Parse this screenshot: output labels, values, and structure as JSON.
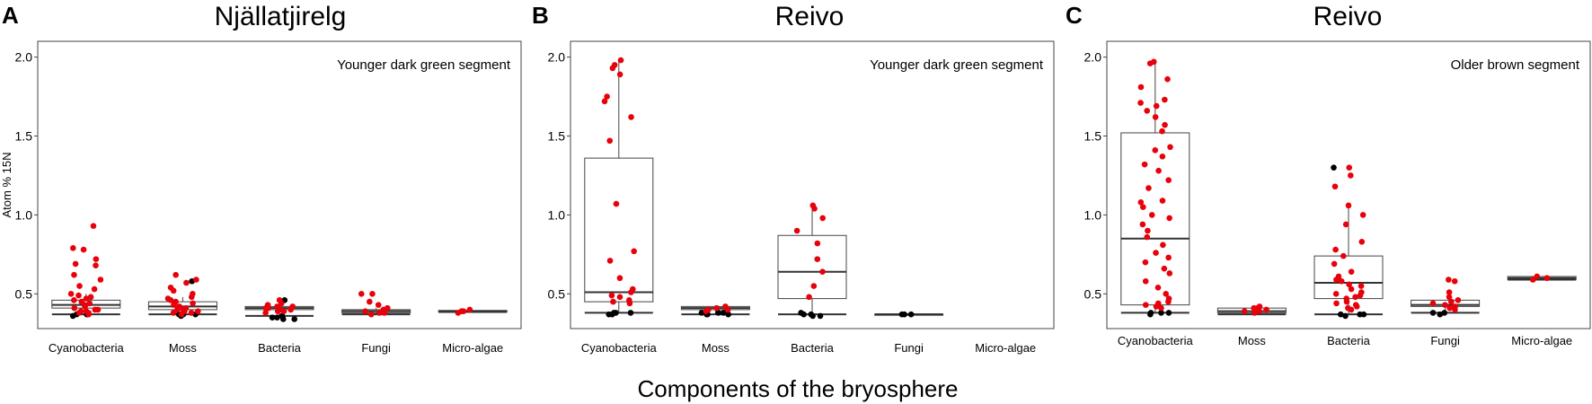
{
  "figure": {
    "xlabel": "Components of the bryosphere"
  },
  "colors": {
    "labelled": "#e8000b",
    "unlabelled": "#000000",
    "box": "#000000"
  },
  "chart_data": [
    {
      "type": "box",
      "panel": "A",
      "title": "Njällatjirelg",
      "annotation": "Younger dark green segment",
      "ylabel": "Atom % 15N",
      "yticks": [
        0.5,
        1.0,
        1.5,
        2.0
      ],
      "ytick_labels": [
        "0.5",
        "1.0",
        "1.5",
        "2.0"
      ],
      "ylim": [
        0.28,
        2.1
      ],
      "categories": [
        "Cyanobacteria",
        "Moss",
        "Bacteria",
        "Fungi",
        "Micro-algae"
      ],
      "boxes": [
        {
          "category": "Cyanobacteria",
          "q1": 0.41,
          "median": 0.43,
          "q3": 0.46,
          "whisker_low": 0.37,
          "whisker_high": 0.5,
          "points_red": [
            0.93,
            0.79,
            0.78,
            0.72,
            0.69,
            0.68,
            0.62,
            0.59,
            0.55,
            0.53,
            0.5,
            0.49,
            0.48,
            0.47,
            0.46,
            0.45,
            0.44,
            0.43,
            0.42,
            0.41,
            0.4,
            0.4,
            0.39,
            0.39,
            0.38,
            0.38,
            0.37
          ],
          "points_black": [
            0.37,
            0.37,
            0.36,
            0.37
          ]
        },
        {
          "category": "Moss",
          "q1": 0.4,
          "median": 0.42,
          "q3": 0.45,
          "whisker_low": 0.37,
          "whisker_high": 0.48,
          "points_red": [
            0.62,
            0.59,
            0.57,
            0.54,
            0.52,
            0.5,
            0.48,
            0.47,
            0.46,
            0.45,
            0.44,
            0.43,
            0.42,
            0.41,
            0.4,
            0.4,
            0.39,
            0.39,
            0.38,
            0.38,
            0.37
          ],
          "points_black": [
            0.58,
            0.37,
            0.37,
            0.36,
            0.37
          ]
        },
        {
          "category": "Bacteria",
          "q1": 0.4,
          "median": 0.41,
          "q3": 0.42,
          "whisker_low": 0.36,
          "whisker_high": 0.44,
          "points_red": [
            0.46,
            0.44,
            0.43,
            0.42,
            0.42,
            0.41,
            0.41,
            0.4,
            0.4,
            0.39,
            0.39,
            0.38
          ],
          "points_black": [
            0.46,
            0.36,
            0.35,
            0.35,
            0.34,
            0.34
          ]
        },
        {
          "category": "Fungi",
          "q1": 0.38,
          "median": 0.39,
          "q3": 0.4,
          "whisker_low": 0.37,
          "whisker_high": 0.41,
          "points_red": [
            0.5,
            0.5,
            0.45,
            0.43,
            0.41,
            0.4,
            0.39,
            0.38,
            0.38,
            0.37
          ],
          "points_black": []
        },
        {
          "category": "Micro-algae",
          "q1": 0.385,
          "median": 0.39,
          "q3": 0.395,
          "whisker_low": 0.385,
          "whisker_high": 0.395,
          "points_red": [
            0.4,
            0.39,
            0.39,
            0.38
          ],
          "points_black": []
        }
      ]
    },
    {
      "type": "box",
      "panel": "B",
      "title": "Reivo",
      "annotation": "Younger dark green segment",
      "ylabel": "",
      "yticks": [
        0.5,
        1.0,
        1.5,
        2.0
      ],
      "ytick_labels": [
        "0.5",
        "1.0",
        "1.5",
        "2.0"
      ],
      "ylim": [
        0.28,
        2.1
      ],
      "categories": [
        "Cyanobacteria",
        "Moss",
        "Bacteria",
        "Fungi",
        "Micro-algae"
      ],
      "boxes": [
        {
          "category": "Cyanobacteria",
          "q1": 0.45,
          "median": 0.51,
          "q3": 1.36,
          "whisker_low": 0.38,
          "whisker_high": 1.98,
          "points_red": [
            1.98,
            1.95,
            1.93,
            1.89,
            1.75,
            1.72,
            1.62,
            1.47,
            1.07,
            0.77,
            0.71,
            0.6,
            0.53,
            0.51,
            0.49,
            0.48,
            0.46,
            0.45,
            0.44
          ],
          "points_black": [
            0.38,
            0.38,
            0.37,
            0.38,
            0.37
          ]
        },
        {
          "category": "Moss",
          "q1": 0.4,
          "median": 0.41,
          "q3": 0.42,
          "whisker_low": 0.37,
          "whisker_high": 0.42,
          "points_red": [
            0.42,
            0.41,
            0.4,
            0.4,
            0.39
          ],
          "points_black": [
            0.38,
            0.38,
            0.37,
            0.37,
            0.37,
            0.38
          ]
        },
        {
          "category": "Bacteria",
          "q1": 0.47,
          "median": 0.64,
          "q3": 0.87,
          "whisker_low": 0.37,
          "whisker_high": 1.06,
          "points_red": [
            1.06,
            1.04,
            0.98,
            0.9,
            0.82,
            0.72,
            0.64,
            0.55,
            0.48
          ],
          "points_black": [
            0.38,
            0.37,
            0.36,
            0.36,
            0.37
          ]
        },
        {
          "category": "Fungi",
          "q1": 0.37,
          "median": 0.37,
          "q3": 0.37,
          "whisker_low": 0.37,
          "whisker_high": 0.37,
          "points_red": [],
          "points_black": [
            0.37,
            0.37,
            0.37
          ]
        },
        {
          "category": "Micro-algae",
          "q1": null,
          "median": null,
          "q3": null,
          "whisker_low": null,
          "whisker_high": null,
          "points_red": [],
          "points_black": []
        }
      ]
    },
    {
      "type": "box",
      "panel": "C",
      "title": "Reivo",
      "annotation": "Older brown segment",
      "ylabel": "",
      "yticks": [
        0.5,
        1.0,
        1.5,
        2.0
      ],
      "ytick_labels": [
        "0.5",
        "1.0",
        "1.5",
        "2.0"
      ],
      "ylim": [
        0.28,
        2.1
      ],
      "categories": [
        "Cyanobacteria",
        "Moss",
        "Bacteria",
        "Fungi",
        "Micro-algae"
      ],
      "boxes": [
        {
          "category": "Cyanobacteria",
          "q1": 0.43,
          "median": 0.85,
          "q3": 1.52,
          "whisker_low": 0.38,
          "whisker_high": 1.97,
          "points_red": [
            1.97,
            1.96,
            1.86,
            1.81,
            1.73,
            1.71,
            1.69,
            1.66,
            1.62,
            1.57,
            1.53,
            1.43,
            1.41,
            1.37,
            1.32,
            1.28,
            1.22,
            1.17,
            1.09,
            1.08,
            1.05,
            1.0,
            0.98,
            0.94,
            0.9,
            0.86,
            0.81,
            0.76,
            0.73,
            0.7,
            0.66,
            0.63,
            0.58,
            0.54,
            0.5,
            0.47,
            0.45,
            0.44,
            0.43,
            0.42,
            0.41
          ],
          "points_black": [
            0.38,
            0.38,
            0.38,
            0.37
          ]
        },
        {
          "category": "Moss",
          "q1": 0.38,
          "median": 0.39,
          "q3": 0.41,
          "whisker_low": 0.37,
          "whisker_high": 0.41,
          "points_red": [
            0.42,
            0.41,
            0.41,
            0.4,
            0.4,
            0.39,
            0.39,
            0.38
          ],
          "points_black": []
        },
        {
          "category": "Bacteria",
          "q1": 0.47,
          "median": 0.57,
          "q3": 0.74,
          "whisker_low": 0.37,
          "whisker_high": 1.06,
          "points_red": [
            1.3,
            1.25,
            1.18,
            1.06,
            1.0,
            0.94,
            0.83,
            0.78,
            0.74,
            0.69,
            0.64,
            0.61,
            0.59,
            0.58,
            0.56,
            0.55,
            0.53,
            0.51,
            0.5,
            0.49,
            0.48,
            0.47,
            0.45,
            0.44,
            0.43,
            0.42,
            0.41,
            0.4
          ],
          "points_black": [
            1.3,
            0.37,
            0.37,
            0.36,
            0.37
          ]
        },
        {
          "category": "Fungi",
          "q1": 0.42,
          "median": 0.43,
          "q3": 0.46,
          "whisker_low": 0.38,
          "whisker_high": 0.46,
          "points_red": [
            0.59,
            0.58,
            0.51,
            0.48,
            0.46,
            0.45,
            0.44,
            0.43,
            0.42,
            0.41,
            0.4
          ],
          "points_black": [
            0.38,
            0.38,
            0.37
          ]
        },
        {
          "category": "Micro-algae",
          "q1": 0.59,
          "median": 0.6,
          "q3": 0.61,
          "whisker_low": 0.59,
          "whisker_high": 0.61,
          "points_red": [
            0.61,
            0.6,
            0.59
          ],
          "points_black": []
        }
      ]
    }
  ]
}
